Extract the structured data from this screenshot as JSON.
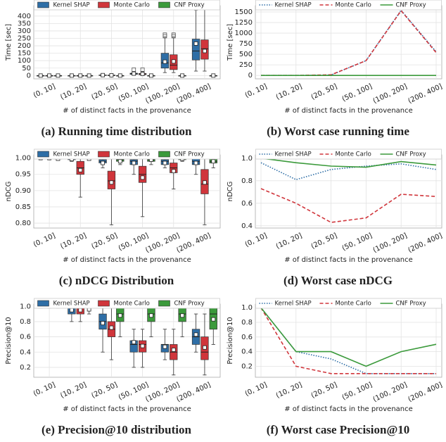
{
  "chart_data": [
    {
      "type": "box",
      "caption": "(a) Running time distribution",
      "ylabel": "Time [sec]",
      "xlabel": "# of distinct facts in the provenance",
      "categories": [
        "(0, 10]",
        "(10, 20]",
        "(20, 50]",
        "(50, 100]",
        "(100, 200]",
        "(200, 400]"
      ],
      "ylim": [
        -22,
        470
      ],
      "yticks": [
        0,
        50,
        100,
        150,
        200,
        250,
        300,
        350,
        400
      ],
      "grid": true,
      "series": [
        {
          "name": "Kernel SHAP",
          "color": "#2e6ea6",
          "values": [
            {
              "whislo": 0,
              "q1": 0,
              "med": 0,
              "q3": 0,
              "whishi": 0,
              "mean": 0
            },
            {
              "whislo": 0,
              "q1": 0,
              "med": 0,
              "q3": 0,
              "whishi": 0,
              "mean": 0
            },
            {
              "whislo": 0,
              "q1": 1,
              "med": 2,
              "q3": 4,
              "whishi": 8,
              "mean": 3
            },
            {
              "whislo": 2,
              "q1": 8,
              "med": 12,
              "q3": 16,
              "whishi": 25,
              "mean": 13,
              "fliers": [
                40
              ]
            },
            {
              "whislo": 20,
              "q1": 50,
              "med": 85,
              "q3": 150,
              "whishi": 255,
              "mean": 93,
              "fliers": [
                265,
                275
              ]
            },
            {
              "whislo": 30,
              "q1": 105,
              "med": 165,
              "q3": 245,
              "whishi": 440,
              "mean": 215
            }
          ]
        },
        {
          "name": "Monte Carlo",
          "color": "#d0353b",
          "values": [
            {
              "whislo": 0,
              "q1": 0,
              "med": 0,
              "q3": 0,
              "whishi": 0,
              "mean": 0
            },
            {
              "whislo": 0,
              "q1": 0,
              "med": 0,
              "q3": 0,
              "whishi": 0,
              "mean": 0
            },
            {
              "whislo": 0,
              "q1": 1,
              "med": 2,
              "q3": 3,
              "whishi": 6,
              "mean": 2
            },
            {
              "whislo": 2,
              "q1": 6,
              "med": 10,
              "q3": 14,
              "whishi": 25,
              "mean": 11,
              "fliers": [
                40
              ]
            },
            {
              "whislo": 20,
              "q1": 40,
              "med": 70,
              "q3": 140,
              "whishi": 255,
              "mean": 95,
              "fliers": [
                265,
                275
              ]
            },
            {
              "whislo": 30,
              "q1": 110,
              "med": 180,
              "q3": 240,
              "whishi": 445,
              "mean": 165
            }
          ]
        },
        {
          "name": "CNF Proxy",
          "color": "#3b9a3b",
          "values": [
            {
              "whislo": 0,
              "q1": 0,
              "med": 0,
              "q3": 0,
              "whishi": 0,
              "mean": 0
            },
            {
              "whislo": 0,
              "q1": 0,
              "med": 0,
              "q3": 0,
              "whishi": 0,
              "mean": 0
            },
            {
              "whislo": 0,
              "q1": 0,
              "med": 0,
              "q3": 0,
              "whishi": 0,
              "mean": 0
            },
            {
              "whislo": 0,
              "q1": 0,
              "med": 0,
              "q3": 0,
              "whishi": 0,
              "mean": 0
            },
            {
              "whislo": 0,
              "q1": 0,
              "med": 0,
              "q3": 0,
              "whishi": 0,
              "mean": 0
            },
            {
              "whislo": 0,
              "q1": 0,
              "med": 0,
              "q3": 0,
              "whishi": 0,
              "mean": 0
            }
          ]
        }
      ]
    },
    {
      "type": "line",
      "caption": "(b) Worst case running time",
      "ylabel": "Time [sec]",
      "xlabel": "# of distinct facts in the provenance",
      "categories": [
        "(0, 10]",
        "(10, 20]",
        "(20, 50]",
        "(50, 100]",
        "(100, 200]",
        "(200, 400]"
      ],
      "ylim": [
        -80,
        1650
      ],
      "yticks": [
        0,
        250,
        500,
        750,
        1000,
        1250,
        1500
      ],
      "grid": true,
      "series": [
        {
          "name": "Kernel SHAP",
          "color": "#2e6ea6",
          "linestyle": "dotted",
          "values": [
            0,
            0,
            10,
            350,
            1540,
            560
          ]
        },
        {
          "name": "Monte Carlo",
          "color": "#d0353b",
          "linestyle": "dashed",
          "values": [
            0,
            0,
            15,
            350,
            1530,
            540
          ]
        },
        {
          "name": "CNF Proxy",
          "color": "#3b9a3b",
          "linestyle": "solid",
          "values": [
            0,
            0,
            0,
            0,
            0,
            0
          ]
        }
      ]
    },
    {
      "type": "box",
      "caption": "(c) nDCG Distribution",
      "ylabel": "nDCG",
      "xlabel": "# of distinct facts in the provenance",
      "categories": [
        "(0, 10]",
        "(10, 20]",
        "(20, 50]",
        "(50, 100]",
        "(100, 200]",
        "(200, 400]"
      ],
      "ylim": [
        0.785,
        1.01
      ],
      "yticks": [
        {
          "value": 0.8,
          "label": "0.80"
        },
        {
          "value": 0.85,
          "label": "0.85"
        },
        {
          "value": 0.9,
          "label": "0.90"
        },
        {
          "value": 0.95,
          "label": "0.95"
        },
        {
          "value": 1,
          "label": "1.00"
        }
      ],
      "grid": true,
      "series": [
        {
          "name": "Kernel SHAP",
          "color": "#2e6ea6",
          "values": [
            {
              "whislo": 1,
              "q1": 1,
              "med": 1,
              "q3": 1,
              "whishi": 1,
              "mean": 1
            },
            {
              "whislo": 0.99,
              "q1": 0.995,
              "med": 0.998,
              "q3": 1,
              "whishi": 1,
              "mean": 0.997
            },
            {
              "whislo": 0.97,
              "q1": 0.985,
              "med": 0.99,
              "q3": 0.995,
              "whishi": 1,
              "mean": 0.985
            },
            {
              "whislo": 0.95,
              "q1": 0.98,
              "med": 0.99,
              "q3": 0.995,
              "whishi": 1,
              "mean": 0.985
            },
            {
              "whislo": 0.97,
              "q1": 0.98,
              "med": 0.99,
              "q3": 0.995,
              "whishi": 1,
              "mean": 0.985
            },
            {
              "whislo": 0.95,
              "q1": 0.98,
              "med": 0.99,
              "q3": 1,
              "whishi": 1,
              "mean": 0.985
            }
          ]
        },
        {
          "name": "Monte Carlo",
          "color": "#d0353b",
          "values": [
            {
              "whislo": 1,
              "q1": 1,
              "med": 1,
              "q3": 1,
              "whishi": 1,
              "mean": 1
            },
            {
              "whislo": 0.88,
              "q1": 0.95,
              "med": 0.97,
              "q3": 0.99,
              "whishi": 1,
              "mean": 0.963
            },
            {
              "whislo": 0.795,
              "q1": 0.905,
              "med": 0.93,
              "q3": 0.96,
              "whishi": 1,
              "mean": 0.925
            },
            {
              "whislo": 0.82,
              "q1": 0.925,
              "med": 0.95,
              "q3": 0.975,
              "whishi": 1,
              "mean": 0.94
            },
            {
              "whislo": 0.905,
              "q1": 0.955,
              "med": 0.97,
              "q3": 0.985,
              "whishi": 1,
              "mean": 0.96
            },
            {
              "whislo": 0.795,
              "q1": 0.89,
              "med": 0.92,
              "q3": 0.965,
              "whishi": 1,
              "mean": 0.925
            }
          ]
        },
        {
          "name": "CNF Proxy",
          "color": "#3b9a3b",
          "values": [
            {
              "whislo": 0.995,
              "q1": 0.997,
              "med": 0.998,
              "q3": 1,
              "whishi": 1,
              "mean": 0.998
            },
            {
              "whislo": 0.995,
              "q1": 0.998,
              "med": 1,
              "q3": 1,
              "whishi": 1,
              "mean": 0.998
            },
            {
              "whislo": 0.98,
              "q1": 0.99,
              "med": 0.995,
              "q3": 1,
              "whishi": 1,
              "mean": 0.99
            },
            {
              "whislo": 0.98,
              "q1": 0.99,
              "med": 0.995,
              "q3": 1,
              "whishi": 1,
              "mean": 0.995
            },
            {
              "whislo": 0.99,
              "q1": 0.995,
              "med": 1,
              "q3": 1,
              "whishi": 1,
              "mean": 0.998
            },
            {
              "whislo": 0.97,
              "q1": 0.985,
              "med": 0.99,
              "q3": 1,
              "whishi": 1,
              "mean": 0.99
            }
          ]
        }
      ]
    },
    {
      "type": "line",
      "caption": "(d) Worst case nDCG",
      "ylabel": "nDCG",
      "xlabel": "# of distinct facts in the provenance",
      "categories": [
        "(0, 10]",
        "(10, 20]",
        "(20, 50]",
        "(50, 100]",
        "(100, 200]",
        "(200, 400]"
      ],
      "ylim": [
        0.38,
        1.03
      ],
      "yticks": [
        0.4,
        0.6,
        0.8,
        {
          "value": 1,
          "label": "1.0"
        }
      ],
      "grid": true,
      "series": [
        {
          "name": "Kernel SHAP",
          "color": "#2e6ea6",
          "linestyle": "dotted",
          "values": [
            0.96,
            0.81,
            0.9,
            0.93,
            0.95,
            0.9
          ]
        },
        {
          "name": "Monte Carlo",
          "color": "#d0353b",
          "linestyle": "dashed",
          "values": [
            0.73,
            0.6,
            0.43,
            0.47,
            0.68,
            0.66
          ]
        },
        {
          "name": "CNF Proxy",
          "color": "#3b9a3b",
          "linestyle": "solid",
          "values": [
            1,
            0.96,
            0.93,
            0.92,
            0.97,
            0.94
          ]
        }
      ]
    },
    {
      "type": "box",
      "caption": "(e) Precision@10 distribution",
      "ylabel": "Precision@10",
      "xlabel": "# of distinct facts in the provenance",
      "categories": [
        "(0, 10]",
        "(10, 20]",
        "(20, 50]",
        "(50, 100]",
        "(100, 200]",
        "(200, 400]"
      ],
      "ylim": [
        0.07,
        1.03
      ],
      "yticks": [
        0.2,
        0.4,
        0.6,
        0.8,
        {
          "value": 1,
          "label": "1.0"
        }
      ],
      "grid": true,
      "series": [
        {
          "name": "Kernel SHAP",
          "color": "#2e6ea6",
          "values": [
            {
              "whislo": 1,
              "q1": 1,
              "med": 1,
              "q3": 1,
              "whishi": 1,
              "mean": 1
            },
            {
              "whislo": 0.8,
              "q1": 0.9,
              "med": 1,
              "q3": 1,
              "whishi": 1,
              "mean": 0.95
            },
            {
              "whislo": 0.4,
              "q1": 0.7,
              "med": 0.8,
              "q3": 0.9,
              "whishi": 1,
              "mean": 0.78
            },
            {
              "whislo": 0.2,
              "q1": 0.4,
              "med": 0.5,
              "q3": 0.55,
              "whishi": 0.7,
              "mean": 0.53
            },
            {
              "whislo": 0.3,
              "q1": 0.4,
              "med": 0.5,
              "q3": 0.5,
              "whishi": 0.7,
              "mean": 0.47
            },
            {
              "whislo": 0.4,
              "q1": 0.5,
              "med": 0.6,
              "q3": 0.7,
              "whishi": 0.9,
              "mean": 0.63
            }
          ]
        },
        {
          "name": "Monte Carlo",
          "color": "#d0353b",
          "values": [
            {
              "whislo": 1,
              "q1": 1,
              "med": 1,
              "q3": 1,
              "whishi": 1,
              "mean": 1
            },
            {
              "whislo": 0.8,
              "q1": 0.9,
              "med": 1,
              "q3": 1,
              "whishi": 1,
              "mean": 0.95
            },
            {
              "whislo": 0.3,
              "q1": 0.6,
              "med": 0.7,
              "q3": 0.8,
              "whishi": 1,
              "mean": 0.72
            },
            {
              "whislo": 0.2,
              "q1": 0.4,
              "med": 0.5,
              "q3": 0.55,
              "whishi": 0.7,
              "mean": 0.48
            },
            {
              "whislo": 0.1,
              "q1": 0.3,
              "med": 0.4,
              "q3": 0.5,
              "whishi": 0.7,
              "mean": 0.43
            },
            {
              "whislo": 0.1,
              "q1": 0.3,
              "med": 0.4,
              "q3": 0.6,
              "whishi": 0.9,
              "mean": 0.46
            }
          ]
        },
        {
          "name": "CNF Proxy",
          "color": "#3b9a3b",
          "values": [
            {
              "whislo": 1,
              "q1": 1,
              "med": 1,
              "q3": 1,
              "whishi": 1,
              "mean": 1
            },
            {
              "whislo": 0.9,
              "q1": 1,
              "med": 1,
              "q3": 1,
              "whishi": 1,
              "mean": 0.96
            },
            {
              "whislo": 0.6,
              "q1": 0.8,
              "med": 0.9,
              "q3": 1,
              "whishi": 1,
              "mean": 0.88
            },
            {
              "whislo": 0.6,
              "q1": 0.8,
              "med": 0.9,
              "q3": 1,
              "whishi": 1,
              "mean": 0.88
            },
            {
              "whislo": 0.6,
              "q1": 0.8,
              "med": 0.9,
              "q3": 1,
              "whishi": 1,
              "mean": 0.88
            },
            {
              "whislo": 0.5,
              "q1": 0.7,
              "med": 0.9,
              "q3": 1,
              "whishi": 1,
              "mean": 0.83
            }
          ]
        }
      ]
    },
    {
      "type": "line",
      "caption": "(f) Worst case Precision@10",
      "ylabel": "Precision@10",
      "xlabel": "# of distinct facts in the provenance",
      "categories": [
        "(0, 10]",
        "(10, 20]",
        "(20, 50]",
        "(50, 100]",
        "(100, 200]",
        "(200, 400]"
      ],
      "ylim": [
        0.05,
        1.05
      ],
      "yticks": [
        0.2,
        0.4,
        0.6,
        0.8,
        {
          "value": 1,
          "label": "1.0"
        }
      ],
      "grid": true,
      "series": [
        {
          "name": "Kernel SHAP",
          "color": "#2e6ea6",
          "linestyle": "dotted",
          "values": [
            1,
            0.4,
            0.3,
            0.1,
            0.1,
            0.1
          ]
        },
        {
          "name": "Monte Carlo",
          "color": "#d0353b",
          "linestyle": "dashed",
          "values": [
            1,
            0.2,
            0.1,
            0.1,
            0.1,
            0.1
          ]
        },
        {
          "name": "CNF Proxy",
          "color": "#3b9a3b",
          "linestyle": "solid",
          "values": [
            1,
            0.4,
            0.4,
            0.2,
            0.4,
            0.5
          ]
        }
      ]
    }
  ]
}
